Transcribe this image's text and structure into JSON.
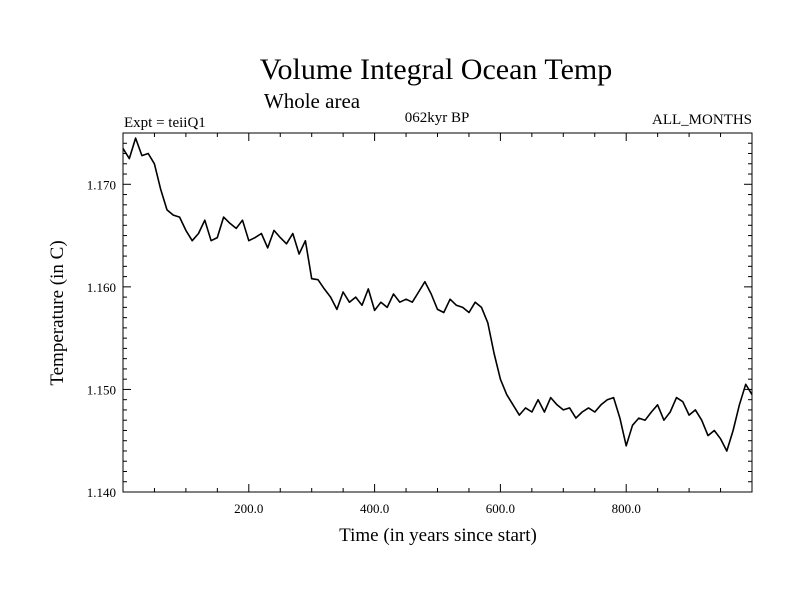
{
  "chart_data": {
    "type": "line",
    "title": "Volume Integral Ocean Temp",
    "subtitle": "Whole area",
    "experiment": "Expt = teiiQ1",
    "period": "062kyr BP",
    "months": "ALL_MONTHS",
    "xlabel": "Time (in years since start)",
    "ylabel": "Temperature (in C)",
    "xlim": [
      0,
      1000
    ],
    "ylim": [
      1.14,
      1.175
    ],
    "xticks": [
      200,
      400,
      600,
      800
    ],
    "xtick_labels": [
      "200.0",
      "400.0",
      "600.0",
      "800.0"
    ],
    "yticks": [
      1.14,
      1.15,
      1.16,
      1.17
    ],
    "ytick_labels": [
      "1.140",
      "1.150",
      "1.160",
      "1.170"
    ],
    "grid": false,
    "series": [
      {
        "x": [
          0,
          10,
          20,
          30,
          40,
          50,
          60,
          70,
          80,
          90,
          100,
          110,
          120,
          130,
          140,
          150,
          160,
          170,
          180,
          190,
          200,
          210,
          220,
          230,
          240,
          250,
          260,
          270,
          280,
          290,
          300,
          310,
          320,
          330,
          340,
          350,
          360,
          370,
          380,
          390,
          400,
          410,
          420,
          430,
          440,
          450,
          460,
          470,
          480,
          490,
          500,
          510,
          520,
          530,
          540,
          550,
          560,
          570,
          580,
          590,
          600,
          610,
          620,
          630,
          640,
          650,
          660,
          670,
          680,
          690,
          700,
          710,
          720,
          730,
          740,
          750,
          760,
          770,
          780,
          790,
          800,
          810,
          820,
          830,
          840,
          850,
          860,
          870,
          880,
          890,
          900,
          910,
          920,
          930,
          940,
          950,
          960,
          970,
          980,
          990,
          1000
        ],
        "values": [
          1.1735,
          1.1725,
          1.1745,
          1.1728,
          1.173,
          1.172,
          1.1695,
          1.1675,
          1.167,
          1.1668,
          1.1655,
          1.1645,
          1.1652,
          1.1665,
          1.1645,
          1.1648,
          1.1668,
          1.1662,
          1.1657,
          1.1665,
          1.1645,
          1.1648,
          1.1652,
          1.1638,
          1.1655,
          1.1648,
          1.1642,
          1.1652,
          1.1632,
          1.1645,
          1.1608,
          1.1607,
          1.1598,
          1.159,
          1.1578,
          1.1595,
          1.1585,
          1.159,
          1.1582,
          1.1598,
          1.1577,
          1.1585,
          1.158,
          1.1593,
          1.1585,
          1.1588,
          1.1585,
          1.1595,
          1.1605,
          1.1593,
          1.1578,
          1.1575,
          1.1588,
          1.1582,
          1.158,
          1.1575,
          1.1585,
          1.158,
          1.1565,
          1.1535,
          1.151,
          1.1495,
          1.1485,
          1.1475,
          1.1482,
          1.1478,
          1.149,
          1.1478,
          1.1492,
          1.1485,
          1.148,
          1.1482,
          1.1472,
          1.1478,
          1.1482,
          1.1478,
          1.1485,
          1.149,
          1.1492,
          1.1472,
          1.1445,
          1.1465,
          1.1472,
          1.147,
          1.1478,
          1.1485,
          1.147,
          1.1478,
          1.1492,
          1.1488,
          1.1475,
          1.148,
          1.147,
          1.1455,
          1.146,
          1.1452,
          1.144,
          1.146,
          1.1485,
          1.1505,
          1.1495
        ]
      }
    ]
  }
}
